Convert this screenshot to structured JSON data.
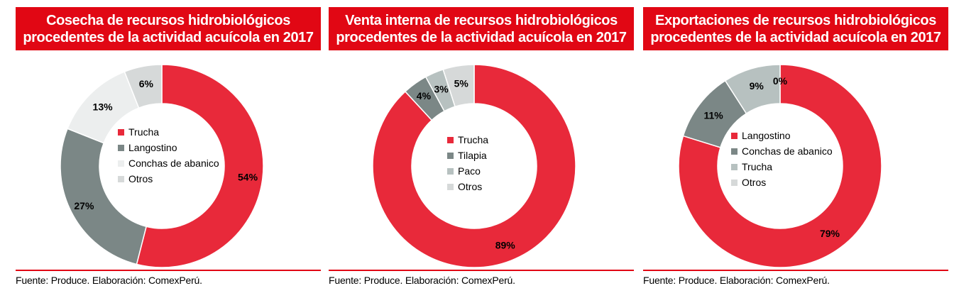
{
  "source": "Fuente: Produce. Elaboración: ComexPerú.",
  "chart_data": [
    {
      "type": "pie",
      "variant": "donut",
      "title_lines": [
        "Cosecha de recursos hidrobiológicos",
        "procedentes de la actividad acuícola en 2017"
      ],
      "categories": [
        "Trucha",
        "Langostino",
        "Conchas de abanico",
        "Otros"
      ],
      "values": [
        54,
        27,
        13,
        6
      ],
      "labels": [
        "54%",
        "27%",
        "13%",
        "6%"
      ],
      "colors": [
        "#e8293a",
        "#7b8786",
        "#eceeee",
        "#d6d9d9"
      ],
      "legend_position": "center"
    },
    {
      "type": "pie",
      "variant": "donut",
      "title_lines": [
        "Venta interna de recursos hidrobiológicos",
        "procedentes de la actividad acuícola en 2017"
      ],
      "categories": [
        "Trucha",
        "Tilapia",
        "Paco",
        "Otros"
      ],
      "values": [
        89,
        4,
        3,
        5
      ],
      "labels": [
        "89%",
        "4%",
        "3%",
        "5%"
      ],
      "colors": [
        "#e8293a",
        "#7b8786",
        "#b7c1c0",
        "#d6d9d9"
      ],
      "legend_position": "center"
    },
    {
      "type": "pie",
      "variant": "donut",
      "title_lines": [
        "Exportaciones de recursos hidrobiológicos",
        "procedentes de la actividad acuícola en 2017"
      ],
      "categories": [
        "Langostino",
        "Conchas de abanico",
        "Trucha",
        "Otros"
      ],
      "values": [
        79,
        11,
        9,
        0
      ],
      "labels": [
        "79%",
        "11%",
        "9%",
        "0%"
      ],
      "colors": [
        "#e8293a",
        "#7b8786",
        "#b7c1c0",
        "#d6d9d9"
      ],
      "legend_position": "center"
    }
  ]
}
